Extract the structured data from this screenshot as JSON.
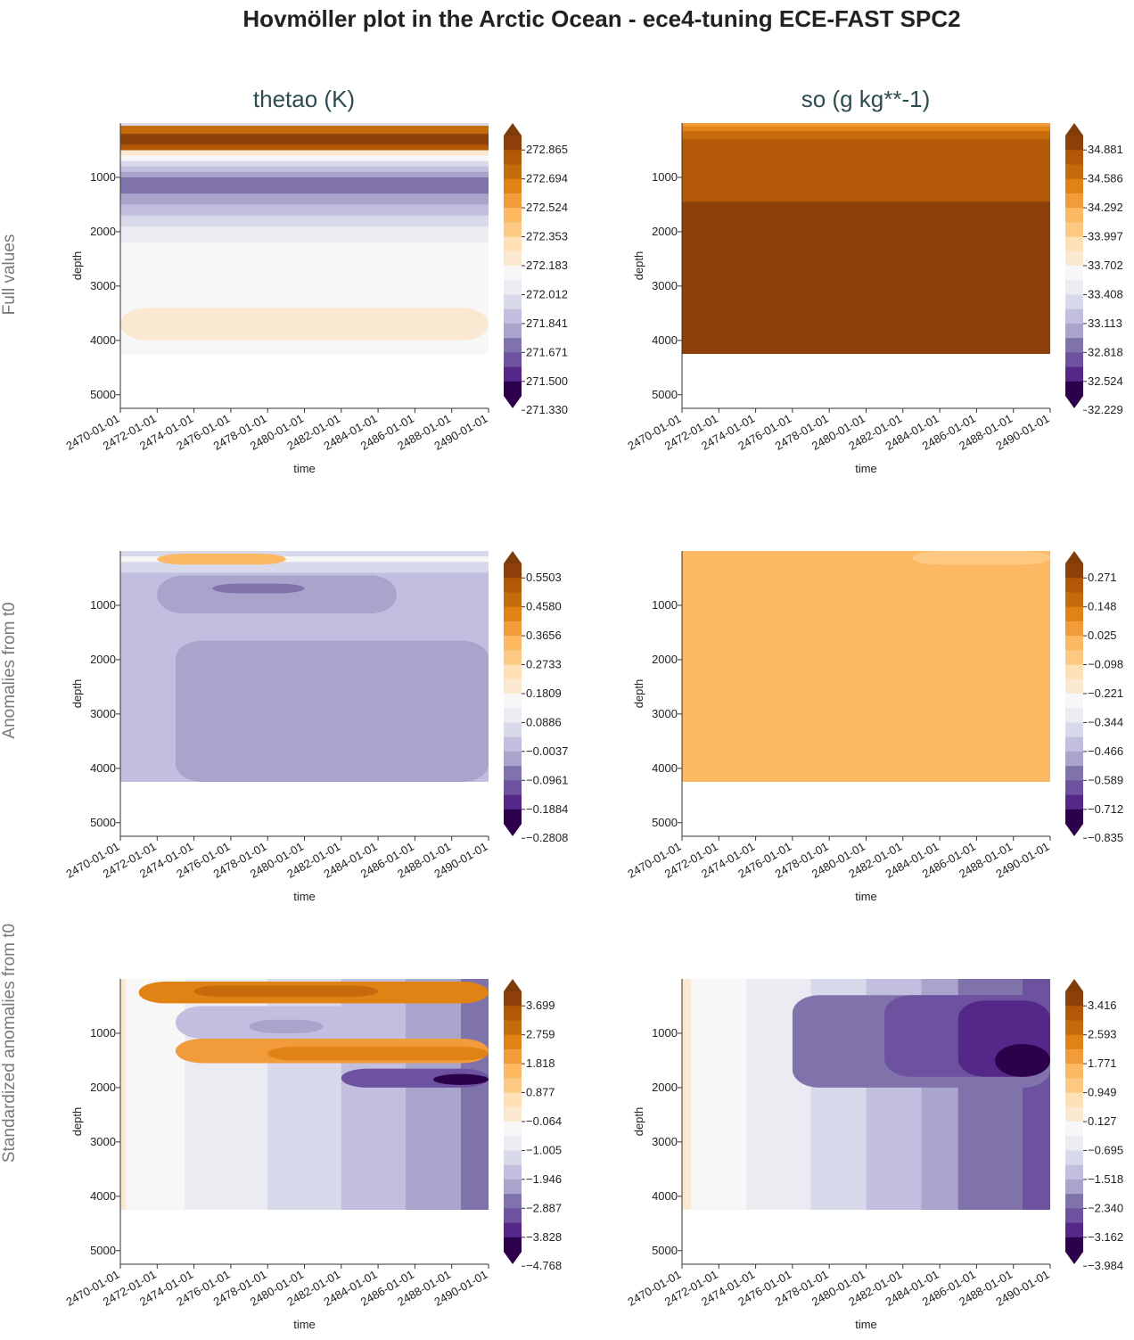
{
  "figure": {
    "title": "Hovmöller plot in the Arctic Ocean - ece4-tuning ECE-FAST SPC2",
    "columns": [
      "thetao (K)",
      "so (g kg**-1)"
    ],
    "rows": [
      "Full values",
      "Anomalies from t0",
      "Standardized anomalies from t0"
    ]
  },
  "colors": {
    "levels": [
      "#2d004b",
      "#542788",
      "#6d52a0",
      "#8073ac",
      "#a9a4cc",
      "#c2bedf",
      "#d8daeb",
      "#ebebf2",
      "#f7f7f7",
      "#fbe8d2",
      "#fee0b6",
      "#fdc982",
      "#fdb863",
      "#f29b3a",
      "#e08214",
      "#c56b0c",
      "#b35806",
      "#8c410a"
    ]
  },
  "chart_data": [
    {
      "type": "heatmap",
      "name": "thetao-full",
      "row": "Full values",
      "column": "thetao (K)",
      "xlabel": "time",
      "ylabel": "depth",
      "x_ticks": [
        "2470-01-01",
        "2472-01-01",
        "2474-01-01",
        "2476-01-01",
        "2478-01-01",
        "2480-01-01",
        "2482-01-01",
        "2484-01-01",
        "2486-01-01",
        "2488-01-01",
        "2490-01-01"
      ],
      "y_ticks": [
        1000,
        2000,
        3000,
        4000,
        5000
      ],
      "ylim": [
        5250,
        0
      ],
      "data_max_depth": 4250,
      "colorbar_ticks": [
        "272.865",
        "272.694",
        "272.524",
        "272.353",
        "272.183",
        "272.012",
        "271.841",
        "271.671",
        "271.500",
        "271.330"
      ],
      "depth_profile": [
        [
          0,
          6
        ],
        [
          50,
          15
        ],
        [
          100,
          15
        ],
        [
          200,
          17
        ],
        [
          300,
          17
        ],
        [
          400,
          16
        ],
        [
          500,
          9
        ],
        [
          600,
          8
        ],
        [
          700,
          6
        ],
        [
          800,
          5
        ],
        [
          900,
          4
        ],
        [
          1000,
          3
        ],
        [
          1200,
          3
        ],
        [
          1300,
          4
        ],
        [
          1500,
          5
        ],
        [
          1700,
          6
        ],
        [
          1900,
          7
        ],
        [
          2100,
          7
        ],
        [
          2200,
          8
        ],
        [
          4250,
          8
        ]
      ],
      "features": [
        {
          "lvl": 9,
          "t0": 0,
          "t1": 20,
          "depth_start": 3400,
          "depth_end": 4000
        }
      ]
    },
    {
      "type": "heatmap",
      "name": "so-full",
      "row": "Full values",
      "column": "so (g kg**-1)",
      "xlabel": "time",
      "ylabel": "depth",
      "x_ticks": [
        "2470-01-01",
        "2472-01-01",
        "2474-01-01",
        "2476-01-01",
        "2478-01-01",
        "2480-01-01",
        "2482-01-01",
        "2484-01-01",
        "2486-01-01",
        "2488-01-01",
        "2490-01-01"
      ],
      "y_ticks": [
        1000,
        2000,
        3000,
        4000,
        5000
      ],
      "ylim": [
        5250,
        0
      ],
      "data_max_depth": 4250,
      "colorbar_ticks": [
        "34.881",
        "34.586",
        "34.292",
        "33.997",
        "33.702",
        "33.408",
        "33.113",
        "32.818",
        "32.524",
        "32.229"
      ],
      "depth_profile": [
        [
          0,
          13
        ],
        [
          60,
          14
        ],
        [
          150,
          15
        ],
        [
          300,
          16
        ],
        [
          1450,
          17
        ],
        [
          4250,
          17
        ]
      ],
      "features": []
    },
    {
      "type": "heatmap",
      "name": "thetao-anom",
      "row": "Anomalies from t0",
      "column": "thetao (K)",
      "xlabel": "time",
      "ylabel": "depth",
      "x_ticks": [
        "2470-01-01",
        "2472-01-01",
        "2474-01-01",
        "2476-01-01",
        "2478-01-01",
        "2480-01-01",
        "2482-01-01",
        "2484-01-01",
        "2486-01-01",
        "2488-01-01",
        "2490-01-01"
      ],
      "y_ticks": [
        1000,
        2000,
        3000,
        4000,
        5000
      ],
      "ylim": [
        5250,
        0
      ],
      "data_max_depth": 4250,
      "colorbar_ticks": [
        "0.5503",
        "0.4580",
        "0.3656",
        "0.2733",
        "0.1809",
        "0.0886",
        "−0.0037",
        "−0.0961",
        "−0.1884",
        "−0.2808"
      ],
      "depth_profile": [
        [
          0,
          6
        ],
        [
          100,
          8
        ],
        [
          200,
          6
        ],
        [
          400,
          5
        ],
        [
          4250,
          5
        ]
      ],
      "features": [
        {
          "lvl": 12,
          "t0": 2,
          "t1": 9,
          "depth_start": 50,
          "depth_end": 250
        },
        {
          "lvl": 4,
          "t0": 2,
          "t1": 15,
          "depth_start": 450,
          "depth_end": 1150
        },
        {
          "lvl": 3,
          "t0": 5,
          "t1": 10,
          "depth_start": 600,
          "depth_end": 780
        },
        {
          "lvl": 4,
          "t0": 3,
          "t1": 20,
          "depth_start": 1650,
          "depth_end": 4250
        }
      ]
    },
    {
      "type": "heatmap",
      "name": "so-anom",
      "row": "Anomalies from t0",
      "column": "so (g kg**-1)",
      "xlabel": "time",
      "ylabel": "depth",
      "x_ticks": [
        "2470-01-01",
        "2472-01-01",
        "2474-01-01",
        "2476-01-01",
        "2478-01-01",
        "2480-01-01",
        "2482-01-01",
        "2484-01-01",
        "2486-01-01",
        "2488-01-01",
        "2490-01-01"
      ],
      "y_ticks": [
        1000,
        2000,
        3000,
        4000,
        5000
      ],
      "ylim": [
        5250,
        0
      ],
      "data_max_depth": 4250,
      "colorbar_ticks": [
        "0.271",
        "0.148",
        "0.025",
        "−0.098",
        "−0.221",
        "−0.344",
        "−0.466",
        "−0.589",
        "−0.712",
        "−0.835"
      ],
      "depth_profile": [
        [
          0,
          12
        ],
        [
          4250,
          12
        ]
      ],
      "features": [
        {
          "lvl": 11,
          "t0": 12.5,
          "t1": 20,
          "depth_start": 0,
          "depth_end": 250
        }
      ]
    },
    {
      "type": "heatmap",
      "name": "thetao-std",
      "row": "Standardized anomalies from t0",
      "column": "thetao (K)",
      "xlabel": "time",
      "ylabel": "depth",
      "x_ticks": [
        "2470-01-01",
        "2472-01-01",
        "2474-01-01",
        "2476-01-01",
        "2478-01-01",
        "2480-01-01",
        "2482-01-01",
        "2484-01-01",
        "2486-01-01",
        "2488-01-01",
        "2490-01-01"
      ],
      "y_ticks": [
        1000,
        2000,
        3000,
        4000,
        5000
      ],
      "ylim": [
        5250,
        0
      ],
      "data_max_depth": 4250,
      "colorbar_ticks": [
        "3.699",
        "2.759",
        "1.818",
        "0.877",
        "−0.064",
        "−1.005",
        "−1.946",
        "−2.887",
        "−3.828",
        "−4.768"
      ],
      "time_bands": [
        [
          0,
          9
        ],
        [
          0.3,
          8
        ],
        [
          3.5,
          7
        ],
        [
          8,
          6
        ],
        [
          12,
          5
        ],
        [
          15.5,
          4
        ],
        [
          18.5,
          3
        ],
        [
          20,
          3
        ]
      ],
      "features": [
        {
          "lvl": 14,
          "t0": 1,
          "t1": 20,
          "depth_start": 50,
          "depth_end": 450
        },
        {
          "lvl": 15,
          "t0": 4,
          "t1": 14,
          "depth_start": 120,
          "depth_end": 330
        },
        {
          "lvl": 5,
          "t0": 3,
          "t1": 14,
          "depth_start": 500,
          "depth_end": 1100
        },
        {
          "lvl": 4,
          "t0": 7,
          "t1": 11,
          "depth_start": 750,
          "depth_end": 1000
        },
        {
          "lvl": 13,
          "t0": 3,
          "t1": 20,
          "depth_start": 1100,
          "depth_end": 1550
        },
        {
          "lvl": 14,
          "t0": 8,
          "t1": 20,
          "depth_start": 1250,
          "depth_end": 1500
        },
        {
          "lvl": 2,
          "t0": 12,
          "t1": 20,
          "depth_start": 1650,
          "depth_end": 2000
        },
        {
          "lvl": 0,
          "t0": 17,
          "t1": 20,
          "depth_start": 1750,
          "depth_end": 1950
        }
      ]
    },
    {
      "type": "heatmap",
      "name": "so-std",
      "row": "Standardized anomalies from t0",
      "column": "so (g kg**-1)",
      "xlabel": "time",
      "ylabel": "depth",
      "x_ticks": [
        "2470-01-01",
        "2472-01-01",
        "2474-01-01",
        "2476-01-01",
        "2478-01-01",
        "2480-01-01",
        "2482-01-01",
        "2484-01-01",
        "2486-01-01",
        "2488-01-01",
        "2490-01-01"
      ],
      "y_ticks": [
        1000,
        2000,
        3000,
        4000,
        5000
      ],
      "ylim": [
        5250,
        0
      ],
      "data_max_depth": 4250,
      "colorbar_ticks": [
        "3.416",
        "2.593",
        "1.771",
        "0.949",
        "0.127",
        "−0.695",
        "−1.518",
        "−2.340",
        "−3.162",
        "−3.984"
      ],
      "time_bands": [
        [
          0,
          9
        ],
        [
          0.5,
          8
        ],
        [
          3.5,
          7
        ],
        [
          7,
          6
        ],
        [
          10,
          5
        ],
        [
          13,
          4
        ],
        [
          15,
          3
        ],
        [
          18.5,
          2
        ],
        [
          20,
          2
        ]
      ],
      "features": [
        {
          "lvl": 3,
          "t0": 6,
          "t1": 20,
          "depth_start": 300,
          "depth_end": 2000
        },
        {
          "lvl": 2,
          "t0": 11,
          "t1": 20,
          "depth_start": 300,
          "depth_end": 1800
        },
        {
          "lvl": 1,
          "t0": 15,
          "t1": 20,
          "depth_start": 400,
          "depth_end": 1800
        },
        {
          "lvl": 0,
          "t0": 17,
          "t1": 20,
          "depth_start": 1200,
          "depth_end": 1800
        }
      ]
    }
  ]
}
